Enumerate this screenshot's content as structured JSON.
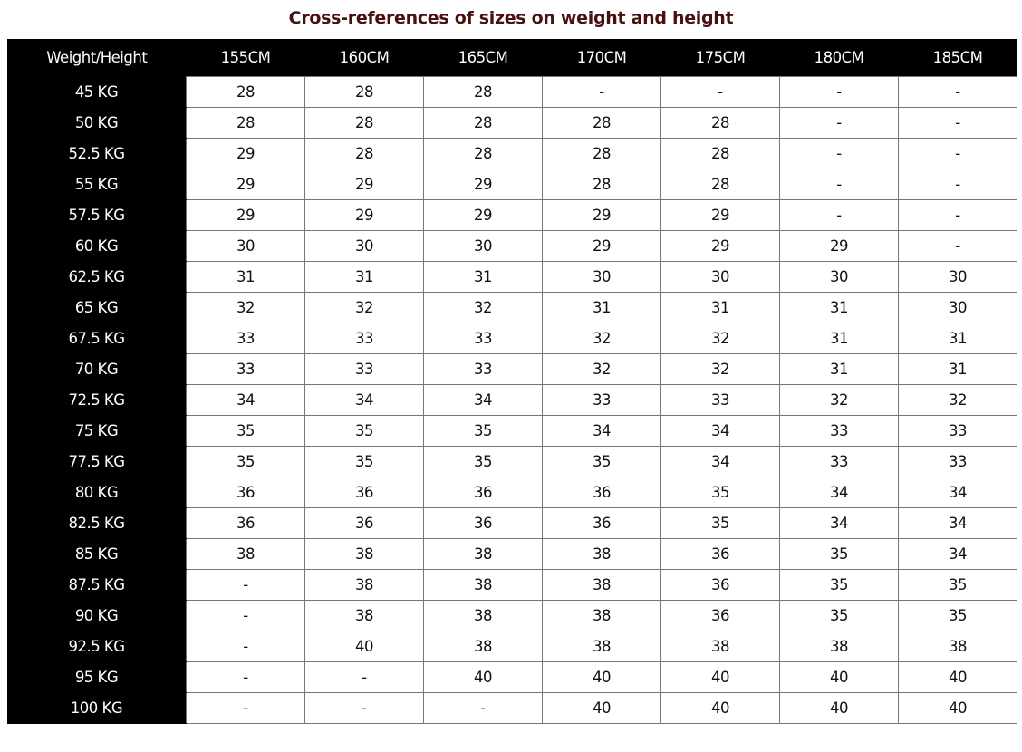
{
  "title": "Cross-references of sizes on weight and height",
  "table": {
    "corner_header": "Weight/Height",
    "columns": [
      "155CM",
      "160CM",
      "165CM",
      "170CM",
      "175CM",
      "180CM",
      "185CM"
    ],
    "rows": [
      {
        "weight": "45 KG",
        "values": [
          "28",
          "28",
          "28",
          "-",
          "-",
          "-",
          "-"
        ]
      },
      {
        "weight": "50 KG",
        "values": [
          "28",
          "28",
          "28",
          "28",
          "28",
          "-",
          "-"
        ]
      },
      {
        "weight": "52.5 KG",
        "values": [
          "29",
          "28",
          "28",
          "28",
          "28",
          "-",
          "-"
        ]
      },
      {
        "weight": "55 KG",
        "values": [
          "29",
          "29",
          "29",
          "28",
          "28",
          "-",
          "-"
        ]
      },
      {
        "weight": "57.5 KG",
        "values": [
          "29",
          "29",
          "29",
          "29",
          "29",
          "-",
          "-"
        ]
      },
      {
        "weight": "60 KG",
        "values": [
          "30",
          "30",
          "30",
          "29",
          "29",
          "29",
          "-"
        ]
      },
      {
        "weight": "62.5 KG",
        "values": [
          "31",
          "31",
          "31",
          "30",
          "30",
          "30",
          "30"
        ]
      },
      {
        "weight": "65 KG",
        "values": [
          "32",
          "32",
          "32",
          "31",
          "31",
          "31",
          "30"
        ]
      },
      {
        "weight": "67.5 KG",
        "values": [
          "33",
          "33",
          "33",
          "32",
          "32",
          "31",
          "31"
        ]
      },
      {
        "weight": "70 KG",
        "values": [
          "33",
          "33",
          "33",
          "32",
          "32",
          "31",
          "31"
        ]
      },
      {
        "weight": "72.5 KG",
        "values": [
          "34",
          "34",
          "34",
          "33",
          "33",
          "32",
          "32"
        ]
      },
      {
        "weight": "75 KG",
        "values": [
          "35",
          "35",
          "35",
          "34",
          "34",
          "33",
          "33"
        ]
      },
      {
        "weight": "77.5 KG",
        "values": [
          "35",
          "35",
          "35",
          "35",
          "34",
          "33",
          "33"
        ]
      },
      {
        "weight": "80 KG",
        "values": [
          "36",
          "36",
          "36",
          "36",
          "35",
          "34",
          "34"
        ]
      },
      {
        "weight": "82.5 KG",
        "values": [
          "36",
          "36",
          "36",
          "36",
          "35",
          "34",
          "34"
        ]
      },
      {
        "weight": "85 KG",
        "values": [
          "38",
          "38",
          "38",
          "38",
          "36",
          "35",
          "34"
        ]
      },
      {
        "weight": "87.5 KG",
        "values": [
          "-",
          "38",
          "38",
          "38",
          "36",
          "35",
          "35"
        ]
      },
      {
        "weight": "90 KG",
        "values": [
          "-",
          "38",
          "38",
          "38",
          "36",
          "35",
          "35"
        ]
      },
      {
        "weight": "92.5 KG",
        "values": [
          "-",
          "40",
          "38",
          "38",
          "38",
          "38",
          "38"
        ]
      },
      {
        "weight": "95 KG",
        "values": [
          "-",
          "-",
          "40",
          "40",
          "40",
          "40",
          "40"
        ]
      },
      {
        "weight": "100 KG",
        "values": [
          "-",
          "-",
          "-",
          "40",
          "40",
          "40",
          "40"
        ]
      }
    ]
  }
}
